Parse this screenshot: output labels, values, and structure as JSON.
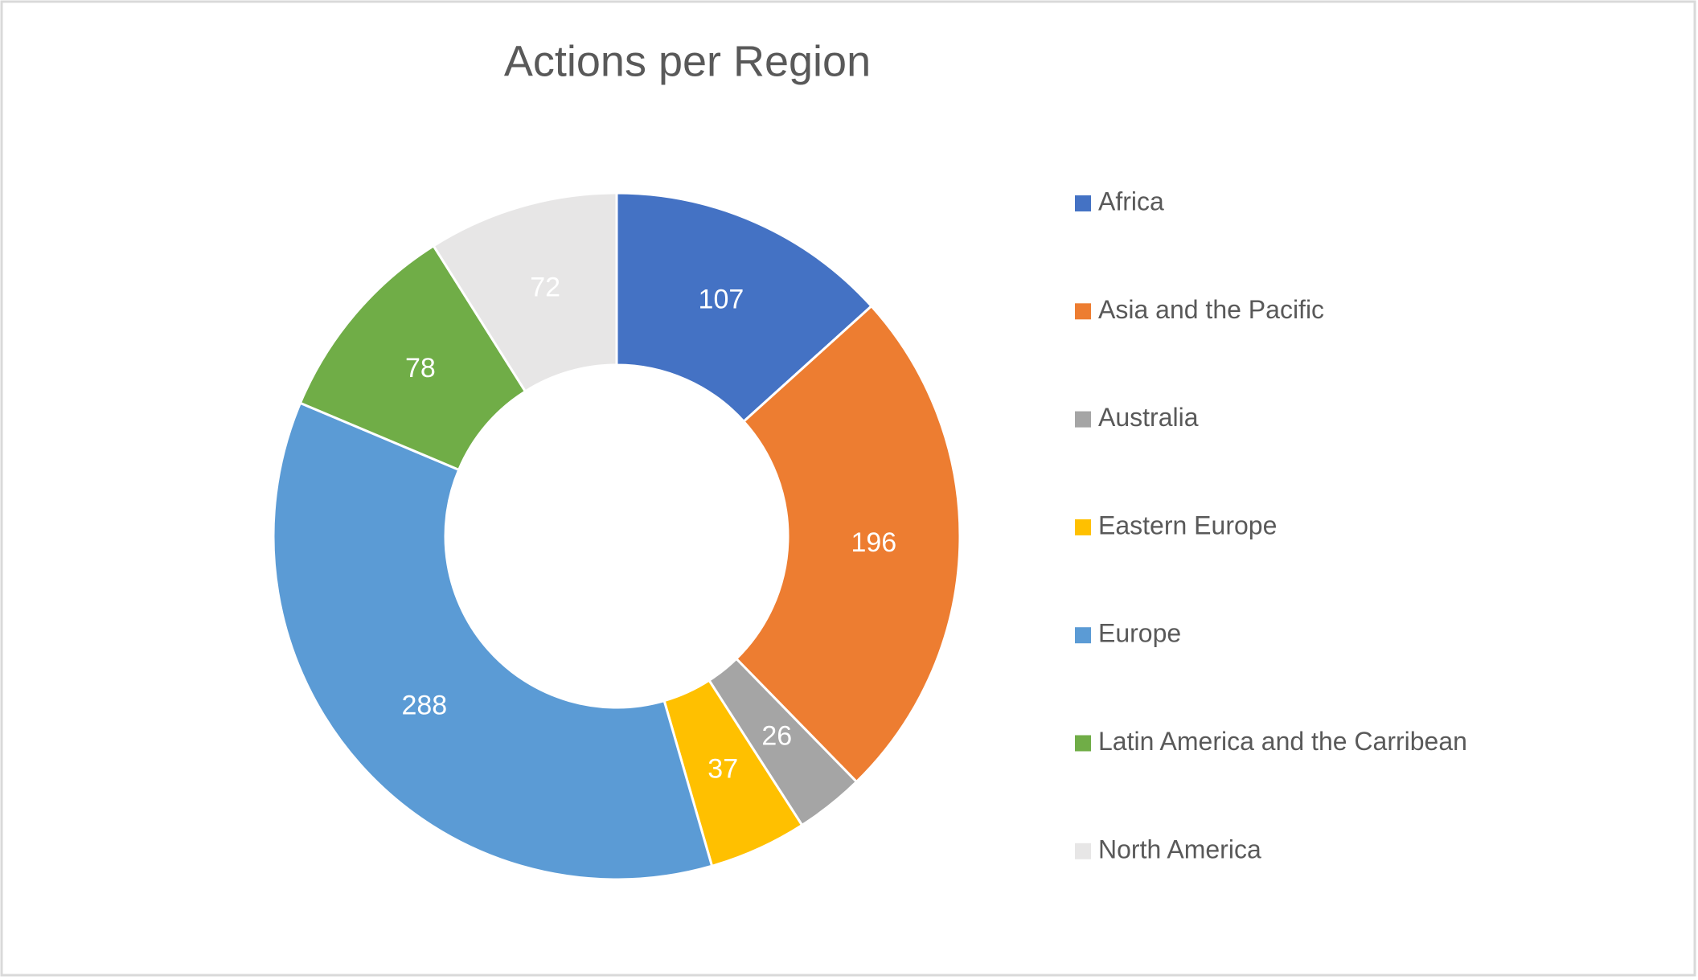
{
  "chart_data": {
    "type": "doughnut",
    "title": "Actions per Region",
    "categories": [
      "Africa",
      "Asia and the Pacific",
      "Australia",
      "Eastern Europe",
      "Europe",
      "Latin America and the Carribean",
      "North America"
    ],
    "values": [
      107,
      196,
      26,
      37,
      288,
      78,
      72
    ],
    "colors": [
      "#4472c4",
      "#ed7d31",
      "#a5a5a5",
      "#ffc000",
      "#5b9bd5",
      "#70ad47",
      "#e7e6e6"
    ],
    "legend": "right"
  }
}
